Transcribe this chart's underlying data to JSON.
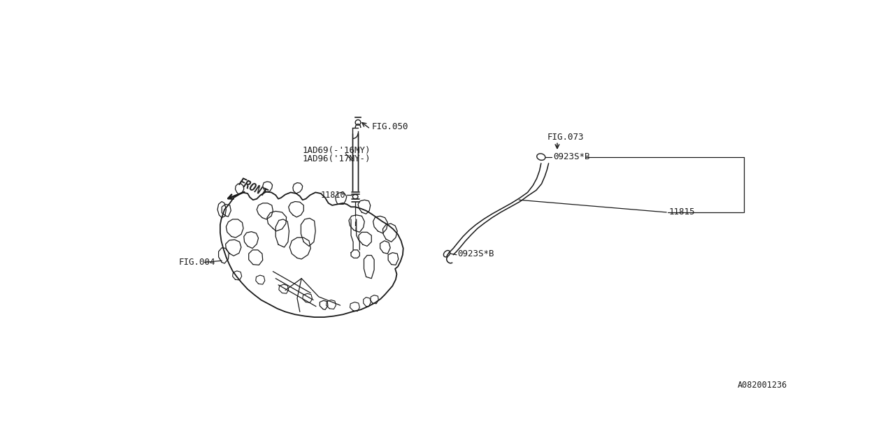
{
  "bg_color": "#ffffff",
  "line_color": "#1a1a1a",
  "fig_width": 12.8,
  "fig_height": 6.4,
  "watermark": "A082001236",
  "labels": {
    "fig050": "FIG.050",
    "fig073": "FIG.073",
    "fig004": "FIG.004",
    "part1ad69": "1AD69(-'16MY)",
    "part1ad96": "1AD96('17MY-)",
    "part11810": "11810",
    "part11815": "11815",
    "part0923s_top": "0923S*B",
    "part0923s_bot": "0923S*B",
    "front": "FRONT"
  }
}
